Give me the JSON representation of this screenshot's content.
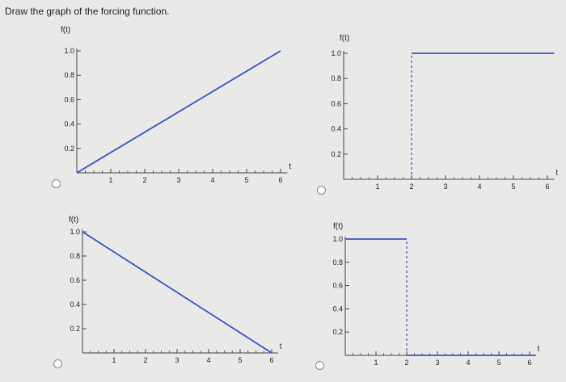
{
  "question": {
    "text": "Draw the graph of the forcing function."
  },
  "options": [
    {
      "id": "a"
    },
    {
      "id": "b"
    },
    {
      "id": "c"
    },
    {
      "id": "d"
    }
  ],
  "colors": {
    "line": "#3653c7",
    "dash": "#3653c7",
    "axis": "#444444"
  },
  "chart_data": [
    {
      "type": "line",
      "ylabel": "f(t)",
      "xlabel": "t",
      "xlim": [
        0,
        6.2
      ],
      "ylim": [
        0,
        1.0
      ],
      "xticks": [
        "1",
        "2",
        "3",
        "4",
        "5",
        "6"
      ],
      "yticks": [
        "1.0",
        "0.8",
        "0.6",
        "0.4",
        "0.2"
      ],
      "series": [
        {
          "x": [
            0,
            6
          ],
          "y": [
            0,
            1
          ]
        }
      ],
      "dashed": []
    },
    {
      "type": "line",
      "ylabel": "f(t)",
      "xlabel": "t",
      "xlim": [
        0,
        6.2
      ],
      "ylim": [
        0,
        1.0
      ],
      "xticks": [
        "1",
        "2",
        "3",
        "4",
        "5",
        "6"
      ],
      "yticks": [
        "1.0",
        "0.8",
        "0.6",
        "0.4",
        "0.2"
      ],
      "series": [
        {
          "x": [
            2,
            6.2
          ],
          "y": [
            1,
            1
          ]
        }
      ],
      "dashed": [
        {
          "x": [
            2,
            2
          ],
          "y": [
            0,
            1
          ]
        }
      ]
    },
    {
      "type": "line",
      "ylabel": "f(t)",
      "xlabel": "t",
      "xlim": [
        0,
        6.2
      ],
      "ylim": [
        0,
        1.0
      ],
      "xticks": [
        "1",
        "2",
        "3",
        "4",
        "5",
        "6"
      ],
      "yticks": [
        "1.0",
        "0.8",
        "0.6",
        "0.4",
        "0.2"
      ],
      "series": [
        {
          "x": [
            0,
            6
          ],
          "y": [
            1,
            0
          ]
        }
      ],
      "dashed": []
    },
    {
      "type": "line",
      "ylabel": "f(t)",
      "xlabel": "t",
      "xlim": [
        0,
        6.2
      ],
      "ylim": [
        0,
        1.0
      ],
      "xticks": [
        "1",
        "2",
        "3",
        "4",
        "5",
        "6"
      ],
      "yticks": [
        "1.0",
        "0.8",
        "0.6",
        "0.4",
        "0.2"
      ],
      "series": [
        {
          "x": [
            0,
            2
          ],
          "y": [
            1,
            1
          ]
        },
        {
          "x": [
            2,
            6.2
          ],
          "y": [
            0,
            0
          ]
        }
      ],
      "dashed": [
        {
          "x": [
            2,
            2
          ],
          "y": [
            0,
            1
          ]
        }
      ]
    }
  ]
}
